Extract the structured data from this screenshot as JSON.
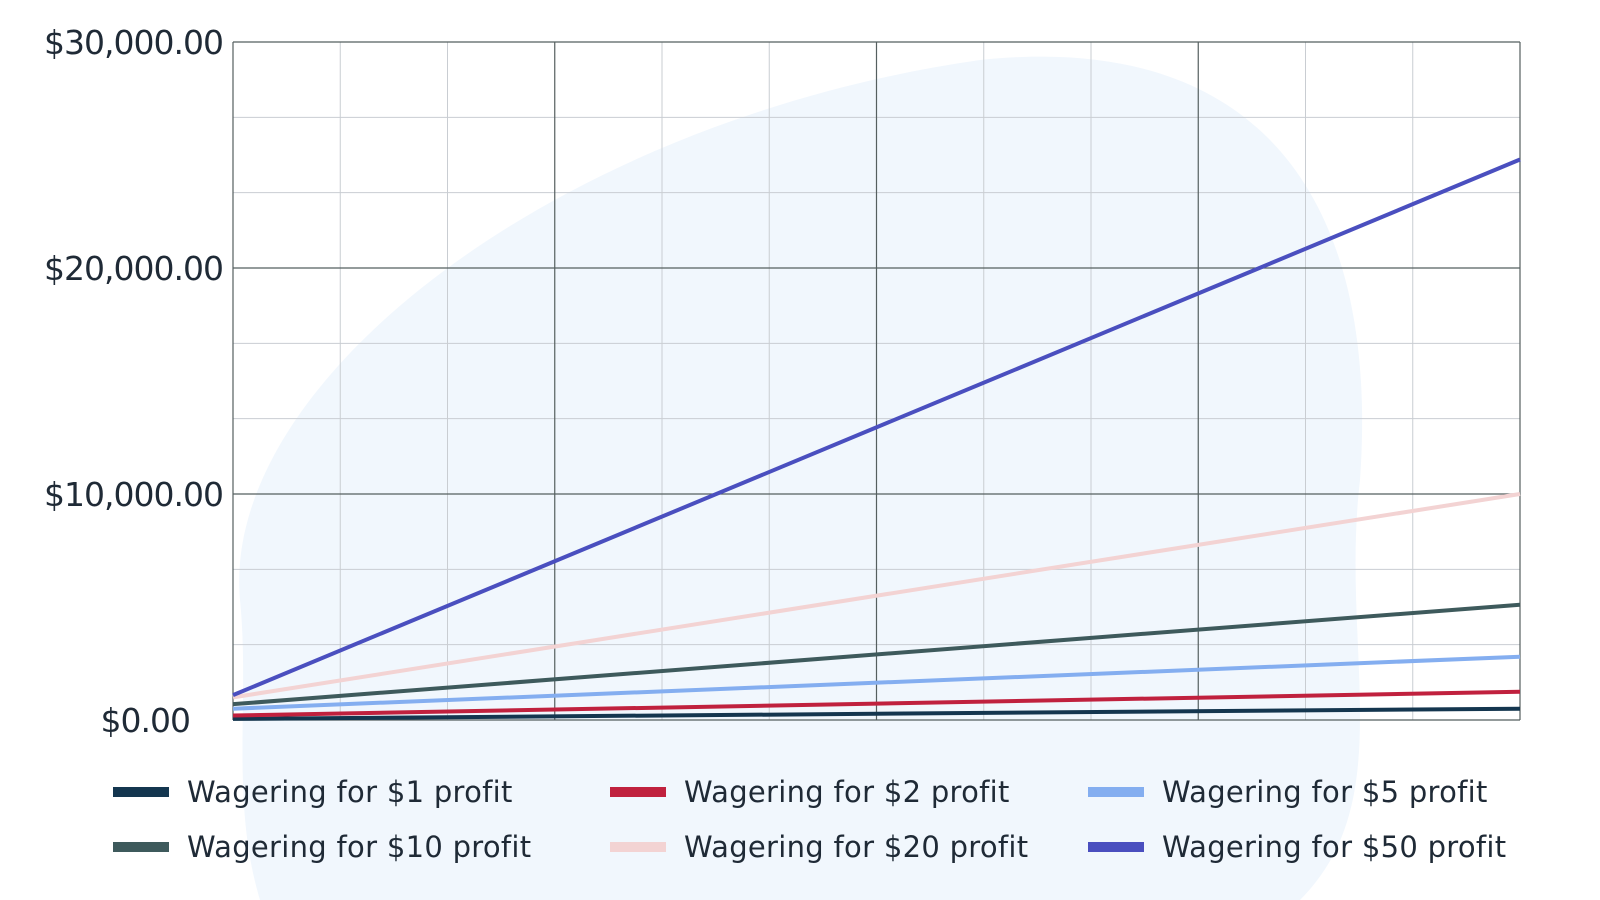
{
  "chart_data": {
    "type": "line",
    "x": [
      0,
      1
    ],
    "ylim": [
      0,
      30000
    ],
    "yticks": [
      {
        "value": 0,
        "label": "$0.00"
      },
      {
        "value": 10000,
        "label": "$10,000.00"
      },
      {
        "value": 20000,
        "label": "$20,000.00"
      },
      {
        "value": 30000,
        "label": "$30,000.00"
      }
    ],
    "grid": true,
    "legend_position": "bottom",
    "series": [
      {
        "name": "Wagering for $1 profit",
        "color": "#14364f",
        "values": [
          50,
          500
        ]
      },
      {
        "name": "Wagering for $2 profit",
        "color": "#c0213e",
        "values": [
          200,
          1250
        ]
      },
      {
        "name": "Wagering for $5 profit",
        "color": "#84aef0",
        "values": [
          500,
          2800
        ]
      },
      {
        "name": "Wagering for $10 profit",
        "color": "#3e5a5c",
        "values": [
          700,
          5100
        ]
      },
      {
        "name": "Wagering for $20 profit",
        "color": "#f3d3d3",
        "values": [
          1000,
          10000
        ]
      },
      {
        "name": "Wagering for $50 profit",
        "color": "#4a4fbf",
        "values": [
          1100,
          24800
        ]
      }
    ]
  }
}
